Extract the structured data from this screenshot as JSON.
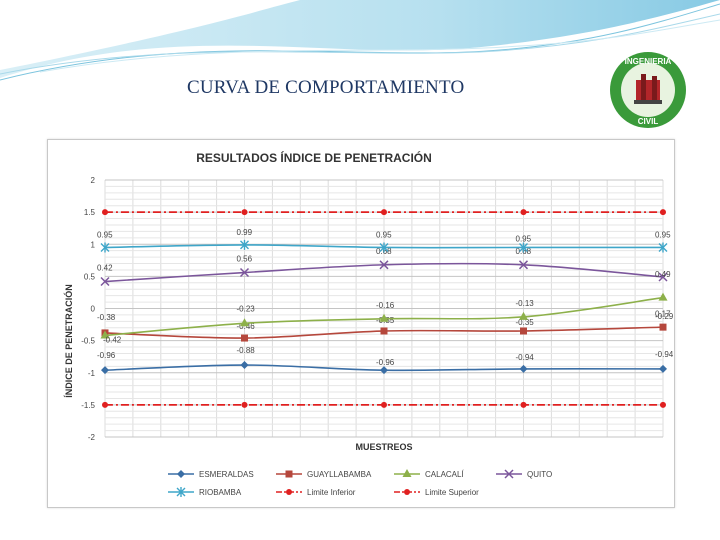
{
  "slide": {
    "title": "CURVA DE COMPORTAMIENTO",
    "logo_text_top": "INGENIERIA",
    "logo_text_bottom": "CIVIL",
    "logo_colors": {
      "ring": "#3a9a3a",
      "ring_inner": "#e8f3e0",
      "accent": "#b3262a"
    }
  },
  "chart_data": {
    "type": "line",
    "title": "RESULTADOS ÍNDICE DE PENETRACIÓN",
    "xlabel": "MUESTREOS",
    "ylabel": "ÍNDICE DE PENETRACIÓN",
    "x_count": 5,
    "ylim": [
      -2,
      2
    ],
    "yticks": [
      2,
      1.5,
      1,
      0.5,
      0,
      -0.5,
      -1,
      -1.5,
      -2
    ],
    "ytick_labels": [
      "2",
      "1.5",
      "1",
      "0.5",
      "0",
      "-0.5",
      "-1",
      "-1.5",
      "-2"
    ],
    "grid": true,
    "legend_position": "bottom",
    "series": [
      {
        "name": "ESMERALDAS",
        "values": [
          -0.96,
          -0.88,
          -0.96,
          -0.94,
          -0.94
        ],
        "labels": [
          "-0.96",
          "-0.88",
          "-0.96",
          "-0.94",
          "-0.94"
        ],
        "color": "#3a6ea5",
        "marker": "diamond",
        "dash": "solid"
      },
      {
        "name": "GUAYLLABAMBA",
        "values": [
          -0.38,
          -0.46,
          -0.35,
          -0.35,
          -0.29
        ],
        "labels": [
          "-0.38",
          "-0.46",
          "-0.35",
          "-0.35",
          "-0.29"
        ],
        "color": "#b5473c",
        "marker": "square",
        "dash": "solid"
      },
      {
        "name": "CALACALÍ",
        "values": [
          -0.42,
          -0.23,
          -0.16,
          -0.13,
          0.17
        ],
        "labels": [
          "-0.42",
          "-0.23",
          "-0.16",
          "-0.13",
          "0.17"
        ],
        "color": "#8db04a",
        "marker": "triangle",
        "dash": "solid"
      },
      {
        "name": "QUITO",
        "values": [
          0.42,
          0.56,
          0.68,
          0.68,
          0.49
        ],
        "labels": [
          "0.42",
          "0.56",
          "0.68",
          "0.68",
          "0.49"
        ],
        "color": "#7b569b",
        "marker": "x",
        "dash": "solid"
      },
      {
        "name": "RIOBAMBA",
        "values": [
          0.95,
          0.99,
          0.95,
          0.95,
          0.95
        ],
        "labels": [
          "0.95",
          "0.99",
          "0.95",
          "0.95",
          "0.95"
        ],
        "color": "#3fa6c9",
        "marker": "star",
        "dash": "solid"
      },
      {
        "name": "Limite Inferior",
        "values": [
          -1.5,
          -1.5,
          -1.5,
          -1.5,
          -1.5
        ],
        "labels": [],
        "color": "#e02020",
        "marker": "circle",
        "dash": "dashdot"
      },
      {
        "name": "Limite Superior",
        "values": [
          1.5,
          1.5,
          1.5,
          1.5,
          1.5
        ],
        "labels": [],
        "color": "#e02020",
        "marker": "circle",
        "dash": "dashdot"
      }
    ]
  }
}
